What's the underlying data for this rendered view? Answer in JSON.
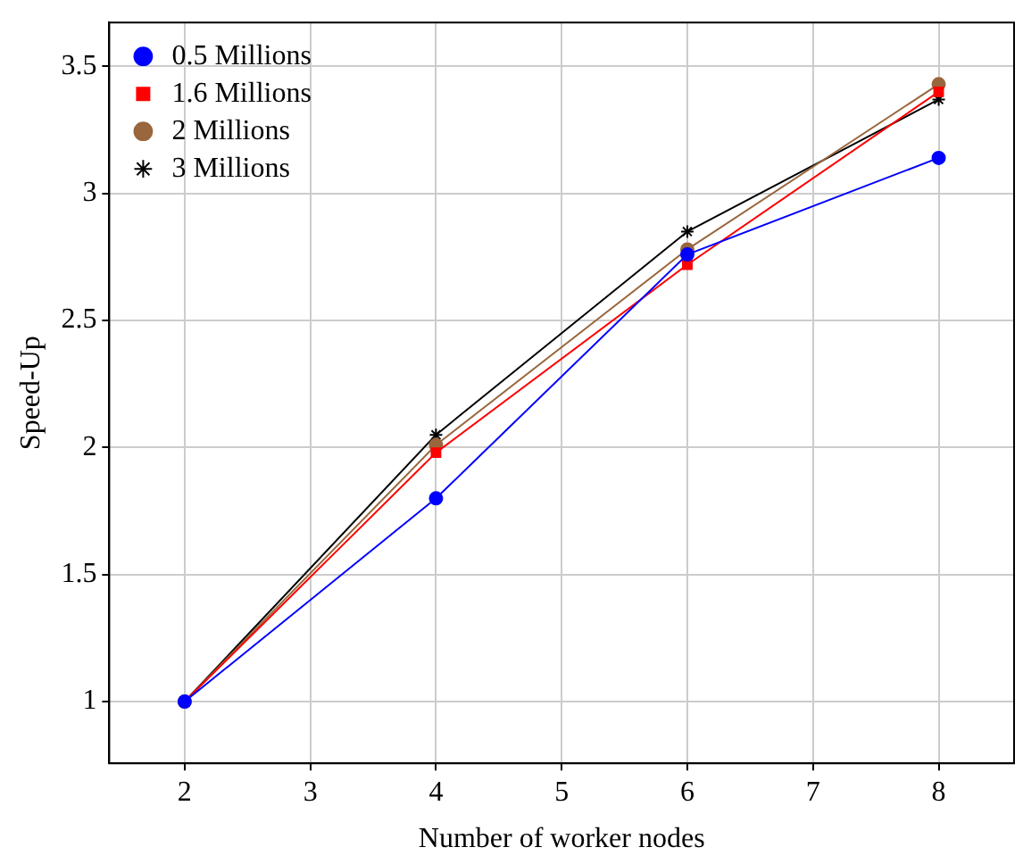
{
  "chart_data": {
    "type": "line",
    "xlabel": "Number of worker nodes",
    "ylabel": "Speed-Up",
    "x": [
      2,
      4,
      6,
      8
    ],
    "xlim": [
      1.4,
      8.6
    ],
    "xticks": [
      2,
      3,
      4,
      5,
      6,
      7,
      8
    ],
    "ylim": [
      0.757,
      3.673
    ],
    "yticks": [
      1,
      1.5,
      2,
      2.5,
      3,
      3.5
    ],
    "grid": true,
    "legend": "top left",
    "line_style": "solid",
    "series": [
      {
        "name": "0.5 Millions",
        "color": "#0000ff",
        "marker": "circle",
        "values": [
          1,
          1.8,
          2.76,
          3.14
        ]
      },
      {
        "name": "1.6 Millions",
        "color": "#ff0000",
        "marker": "square",
        "values": [
          1,
          1.98,
          2.72,
          3.4
        ]
      },
      {
        "name": "2 Millions",
        "color": "#99663d",
        "marker": "circle",
        "values": [
          1,
          2.01,
          2.78,
          3.43
        ]
      },
      {
        "name": "3 Millions",
        "color": "#000000",
        "marker": "cross",
        "values": [
          1,
          2.05,
          2.85,
          3.37
        ]
      }
    ]
  }
}
